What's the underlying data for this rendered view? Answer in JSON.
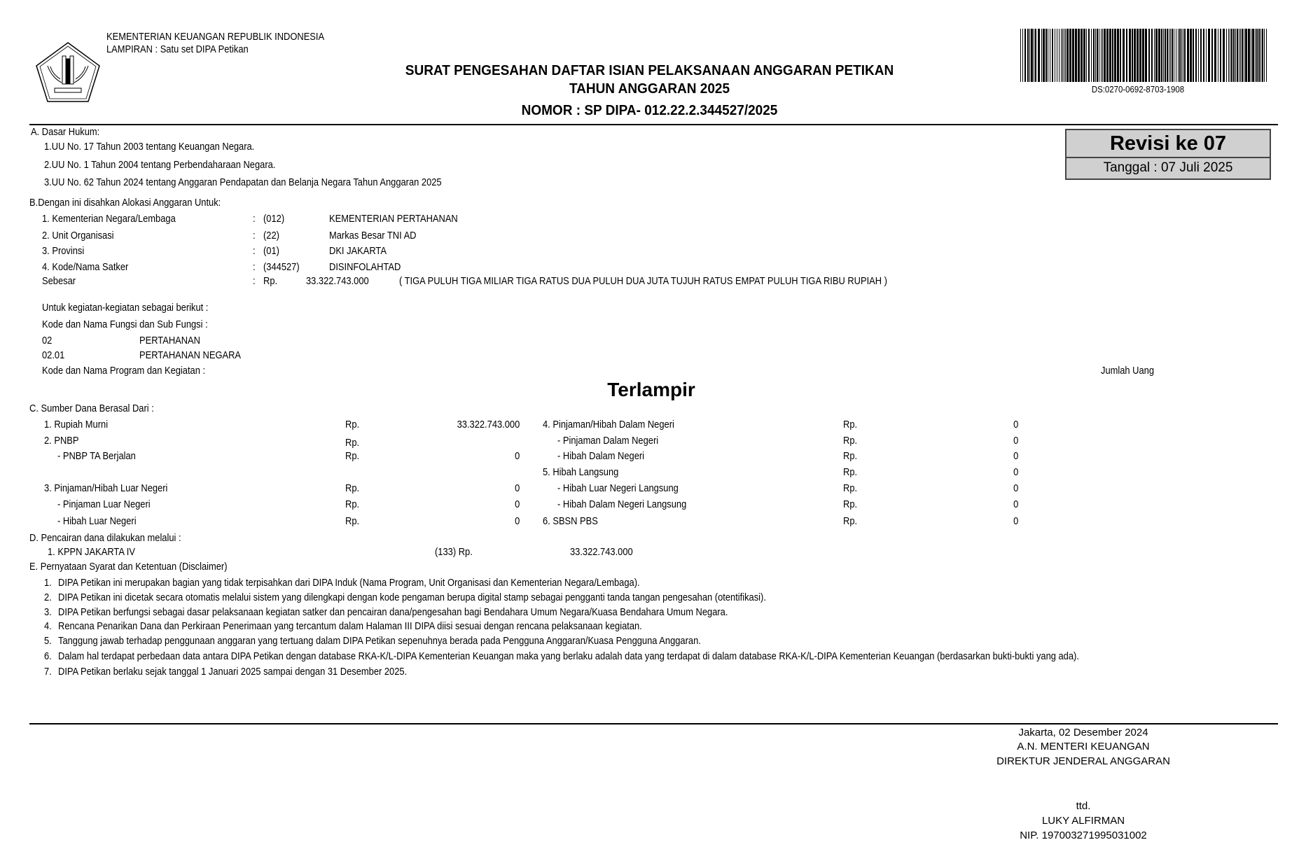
{
  "header": {
    "ministry": "KEMENTERIAN KEUANGAN REPUBLIK INDONESIA",
    "lampiran": "LAMPIRAN : Satu set DIPA Petikan",
    "logo_icon": "kementerian-keuangan-emblem",
    "title_line1": "SURAT PENGESAHAN DAFTAR ISIAN PELAKSANAAN ANGGARAN PETIKAN",
    "title_line2": "TAHUN ANGGARAN 2025",
    "nomor": "NOMOR : SP DIPA- 012.22.2.344527/2025",
    "barcode_code": "DS:0270-0692-8703-1908"
  },
  "revisi": {
    "label": "Revisi ke 07",
    "tanggal": "Tanggal : 07 Juli 2025",
    "background": "#d0d0d0"
  },
  "section_a": {
    "heading": "A. Dasar Hukum:",
    "items": [
      "1.UU No. 17 Tahun 2003 tentang Keuangan Negara.",
      "2.UU No. 1 Tahun 2004 tentang Perbendaharaan Negara.",
      "3.UU No. 62 Tahun 2024 tentang Anggaran Pendapatan dan Belanja Negara Tahun Anggaran 2025"
    ]
  },
  "section_b": {
    "heading": "B.Dengan ini disahkan Alokasi Anggaran Untuk:",
    "rows": [
      {
        "label": "1. Kementerian Negara/Lembaga",
        "code": "(012)",
        "name": "KEMENTERIAN PERTAHANAN"
      },
      {
        "label": "2. Unit Organisasi",
        "code": "(22)",
        "name": "Markas Besar TNI AD"
      },
      {
        "label": "3. Provinsi",
        "code": "(01)",
        "name": "DKI JAKARTA"
      },
      {
        "label": "4. Kode/Nama Satker",
        "code": "(344527)",
        "name": "DISINFOLAHTAD"
      }
    ],
    "colon": ":",
    "sebesar_label": "Sebesar",
    "sebesar_currency": "Rp.",
    "sebesar_amount": "33.322.743.000",
    "sebesar_words": "( TIGA PULUH TIGA MILIAR TIGA RATUS DUA PULUH DUA JUTA TUJUH RATUS EMPAT PULUH TIGA RIBU RUPIAH  )",
    "kegiatan_intro": "Untuk kegiatan-kegiatan sebagai berikut :",
    "fungsi_heading": "Kode dan Nama Fungsi dan Sub Fungsi :",
    "fungsi": [
      {
        "code": "02",
        "name": "PERTAHANAN"
      },
      {
        "code": "02.01",
        "name": "PERTAHANAN NEGARA"
      }
    ],
    "program_heading": "Kode dan Nama Program dan Kegiatan :",
    "jumlah_uang": "Jumlah Uang",
    "terlampir": "Terlampir"
  },
  "section_c": {
    "heading": "C. Sumber Dana Berasal Dari :",
    "left": [
      {
        "label": "1. Rupiah Murni",
        "currency": "Rp.",
        "value": "33.322.743.000"
      },
      {
        "label": "2. PNBP",
        "currency": "Rp.",
        "value": ""
      },
      {
        "label": "- PNBP TA Berjalan",
        "currency": "Rp.",
        "value": "0"
      },
      {
        "label": "",
        "currency": "",
        "value": ""
      },
      {
        "label": "3. Pinjaman/Hibah Luar Negeri",
        "currency": "Rp.",
        "value": "0"
      },
      {
        "label": "- Pinjaman Luar Negeri",
        "currency": "Rp.",
        "value": "0"
      },
      {
        "label": "- Hibah Luar Negeri",
        "currency": "Rp.",
        "value": "0"
      }
    ],
    "right": [
      {
        "label": "4. Pinjaman/Hibah Dalam Negeri",
        "currency": "Rp.",
        "value": "0"
      },
      {
        "label": "- Pinjaman Dalam Negeri",
        "currency": "Rp.",
        "value": "0"
      },
      {
        "label": "- Hibah Dalam Negeri",
        "currency": "Rp.",
        "value": "0"
      },
      {
        "label": "5. Hibah Langsung",
        "currency": "Rp.",
        "value": "0"
      },
      {
        "label": "- Hibah Luar Negeri Langsung",
        "currency": "Rp.",
        "value": "0"
      },
      {
        "label": "- Hibah Dalam Negeri Langsung",
        "currency": "Rp.",
        "value": "0"
      },
      {
        "label": "6. SBSN PBS",
        "currency": "Rp.",
        "value": "0"
      }
    ]
  },
  "section_d": {
    "heading": "D. Pencairan dana dilakukan melalui :",
    "kppn_label": "1. KPPN   JAKARTA IV",
    "kppn_code": "(133)  Rp.",
    "kppn_amount": "33.322.743.000"
  },
  "section_e": {
    "heading": "E. Pernyataan Syarat dan Ketentuan (Disclaimer)",
    "items": [
      {
        "num": "1.",
        "text": "DIPA Petikan ini merupakan bagian yang tidak terpisahkan dari DIPA Induk (Nama Program, Unit Organisasi dan Kementerian Negara/Lembaga)."
      },
      {
        "num": "2.",
        "text": "DIPA Petikan ini dicetak secara otomatis melalui sistem yang dilengkapi dengan kode pengaman berupa digital stamp sebagai pengganti tanda tangan pengesahan (otentifikasi)."
      },
      {
        "num": "3.",
        "text": "DIPA Petikan berfungsi sebagai dasar pelaksanaan kegiatan satker dan pencairan dana/pengesahan bagi Bendahara Umum Negara/Kuasa Bendahara Umum Negara."
      },
      {
        "num": "4.",
        "text": "Rencana Penarikan Dana dan Perkiraan Penerimaan yang tercantum dalam Halaman III DIPA diisi sesuai dengan rencana pelaksanaan kegiatan."
      },
      {
        "num": "5.",
        "text": "Tanggung jawab terhadap penggunaan anggaran yang tertuang dalam DIPA Petikan sepenuhnya berada pada Pengguna Anggaran/Kuasa Pengguna Anggaran."
      },
      {
        "num": "6.",
        "text": "Dalam hal terdapat perbedaan data antara DIPA Petikan dengan database RKA-K/L-DIPA Kementerian Keuangan maka yang berlaku adalah data yang terdapat di dalam database RKA-K/L-DIPA Kementerian Keuangan (berdasarkan bukti-bukti yang ada)."
      },
      {
        "num": "7.",
        "text": "DIPA Petikan berlaku sejak tanggal 1 Januari 2025 sampai dengan 31 Desember 2025."
      }
    ]
  },
  "signature": {
    "place_date": "Jakarta, 02 Desember 2024",
    "an": "A.N. MENTERI KEUANGAN",
    "position": "DIREKTUR JENDERAL ANGGARAN",
    "ttd": "ttd.",
    "name": "LUKY ALFIRMAN",
    "nip": "NIP. 197003271995031002"
  }
}
